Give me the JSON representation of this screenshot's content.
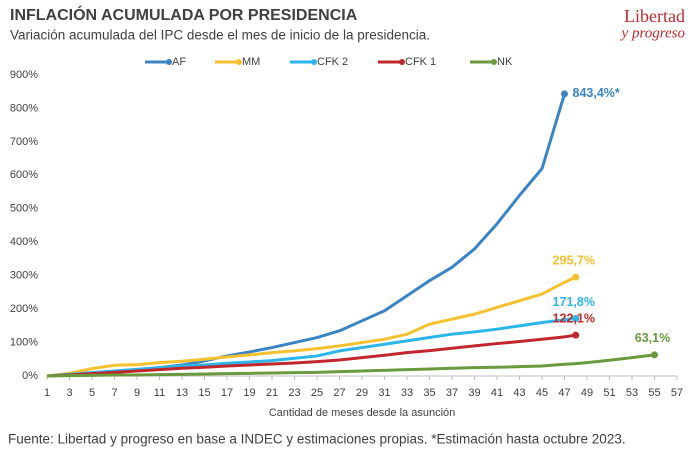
{
  "chart_data": {
    "type": "line",
    "title": "INFLACIÓN ACUMULADA POR PRESIDENCIA",
    "subtitle": "Variación acumulada del IPC desde el mes de inicio de la presidencia.",
    "x_label": "Cantidad de meses desde la asunción",
    "source": "Fuente: Libertad y progreso en base a INDEC y estimaciones propias. *Estimación hasta octubre 2023.",
    "logo": {
      "line1": "Libertad",
      "line2": "y progreso"
    },
    "legend": "top",
    "x": [
      1,
      3,
      5,
      7,
      9,
      11,
      13,
      15,
      17,
      19,
      21,
      23,
      25,
      27,
      29,
      31,
      33,
      35,
      37,
      39,
      41,
      43,
      45,
      47,
      48,
      49,
      51,
      53,
      55
    ],
    "xlim": [
      1,
      57
    ],
    "xticks": [
      1,
      3,
      5,
      7,
      9,
      11,
      13,
      15,
      17,
      19,
      21,
      23,
      25,
      27,
      29,
      31,
      33,
      35,
      37,
      39,
      41,
      43,
      45,
      47,
      49,
      51,
      53,
      55,
      57
    ],
    "ylim": [
      0,
      900
    ],
    "yticks": [
      {
        "value": 0,
        "label": "0%"
      },
      {
        "value": 100,
        "label": "100%"
      },
      {
        "value": 200,
        "label": "200%"
      },
      {
        "value": 300,
        "label": "300%"
      },
      {
        "value": 400,
        "label": "400%"
      },
      {
        "value": 500,
        "label": "500%"
      },
      {
        "value": 600,
        "label": "600%"
      },
      {
        "value": 700,
        "label": "700%"
      },
      {
        "value": 800,
        "label": "800%"
      },
      {
        "value": 900,
        "label": "900%"
      }
    ],
    "series": [
      {
        "name": "AF",
        "color": "#3a84c4",
        "values": [
          0,
          4,
          9,
          14,
          19,
          25,
          33,
          45,
          60,
          72,
          85,
          100,
          115,
          135,
          165,
          195,
          240,
          285,
          325,
          380,
          455,
          540,
          620,
          843.4,
          null,
          null,
          null,
          null,
          null
        ],
        "value_labels": [
          null,
          null,
          null,
          null,
          null,
          null,
          null,
          null,
          null,
          null,
          null,
          null,
          null,
          null,
          null,
          null,
          null,
          null,
          null,
          null,
          null,
          null,
          null,
          "843,4%*",
          null,
          null,
          null,
          null,
          null
        ]
      },
      {
        "name": "MM",
        "color": "#f5c12f",
        "values": [
          0,
          8,
          22,
          32,
          34,
          40,
          44,
          50,
          57,
          63,
          70,
          75,
          82,
          90,
          100,
          110,
          125,
          155,
          170,
          185,
          205,
          225,
          245,
          280,
          295.7,
          null,
          null,
          null,
          null
        ],
        "value_labels": [
          null,
          null,
          null,
          null,
          null,
          null,
          null,
          null,
          null,
          null,
          null,
          null,
          null,
          null,
          null,
          null,
          null,
          null,
          null,
          null,
          null,
          null,
          null,
          null,
          "295,7%",
          null,
          null,
          null,
          null
        ]
      },
      {
        "name": "CFK 2",
        "color": "#2bb5e8",
        "values": [
          0,
          5,
          10,
          15,
          20,
          25,
          30,
          33,
          38,
          42,
          46,
          53,
          60,
          75,
          85,
          95,
          105,
          115,
          125,
          132,
          140,
          150,
          160,
          168,
          171.8,
          null,
          null,
          null,
          null
        ],
        "value_labels": [
          null,
          null,
          null,
          null,
          null,
          null,
          null,
          null,
          null,
          null,
          null,
          null,
          null,
          null,
          null,
          null,
          null,
          null,
          null,
          null,
          null,
          null,
          null,
          null,
          "171,8%",
          null,
          null,
          null,
          null
        ]
      },
      {
        "name": "CFK 1",
        "color": "#c0282d",
        "values": [
          0,
          3,
          7,
          11,
          15,
          19,
          23,
          26,
          30,
          33,
          36,
          39,
          43,
          48,
          55,
          62,
          70,
          76,
          83,
          90,
          97,
          103,
          110,
          117,
          122.1,
          null,
          null,
          null,
          null
        ],
        "value_labels": [
          null,
          null,
          null,
          null,
          null,
          null,
          null,
          null,
          null,
          null,
          null,
          null,
          null,
          null,
          null,
          null,
          null,
          null,
          null,
          null,
          null,
          null,
          null,
          null,
          "122,1%",
          null,
          null,
          null,
          null
        ]
      },
      {
        "name": "NK",
        "color": "#6a9a3e",
        "values": [
          0,
          1,
          2,
          3,
          3,
          4,
          5,
          6,
          7,
          8,
          9,
          10,
          11,
          13,
          15,
          17,
          19,
          21,
          23,
          25,
          26,
          28,
          30,
          35,
          37,
          40,
          47,
          55,
          63.1
        ],
        "value_labels": [
          null,
          null,
          null,
          null,
          null,
          null,
          null,
          null,
          null,
          null,
          null,
          null,
          null,
          null,
          null,
          null,
          null,
          null,
          null,
          null,
          null,
          null,
          null,
          null,
          null,
          null,
          null,
          null,
          "63,1%"
        ]
      }
    ]
  }
}
